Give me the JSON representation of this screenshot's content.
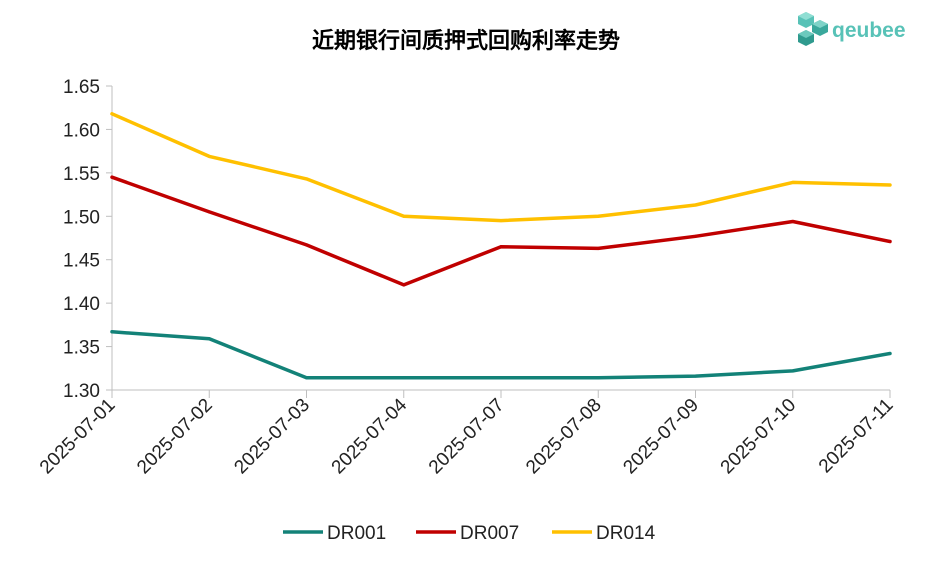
{
  "chart_data": {
    "type": "line",
    "title": "近期银行间质押式回购利率走势",
    "categories": [
      "2025-07-01",
      "2025-07-02",
      "2025-07-03",
      "2025-07-04",
      "2025-07-07",
      "2025-07-08",
      "2025-07-09",
      "2025-07-10",
      "2025-07-11"
    ],
    "series": [
      {
        "name": "DR001",
        "color": "#138278",
        "values": [
          1.367,
          1.359,
          1.314,
          1.314,
          1.314,
          1.314,
          1.316,
          1.322,
          1.342
        ]
      },
      {
        "name": "DR007",
        "color": "#c00000",
        "values": [
          1.545,
          1.505,
          1.467,
          1.421,
          1.465,
          1.463,
          1.477,
          1.494,
          1.471
        ]
      },
      {
        "name": "DR014",
        "color": "#ffc000",
        "values": [
          1.618,
          1.569,
          1.543,
          1.5,
          1.495,
          1.5,
          1.513,
          1.539,
          1.536
        ]
      }
    ],
    "ylim": [
      1.3,
      1.65
    ],
    "yticks": [
      "1.30",
      "1.35",
      "1.40",
      "1.45",
      "1.50",
      "1.55",
      "1.60",
      "1.65"
    ],
    "xlabel": "",
    "ylabel": "",
    "legend": "bottom"
  },
  "logo": {
    "text": "qeubee",
    "color": "#58c2b7"
  }
}
